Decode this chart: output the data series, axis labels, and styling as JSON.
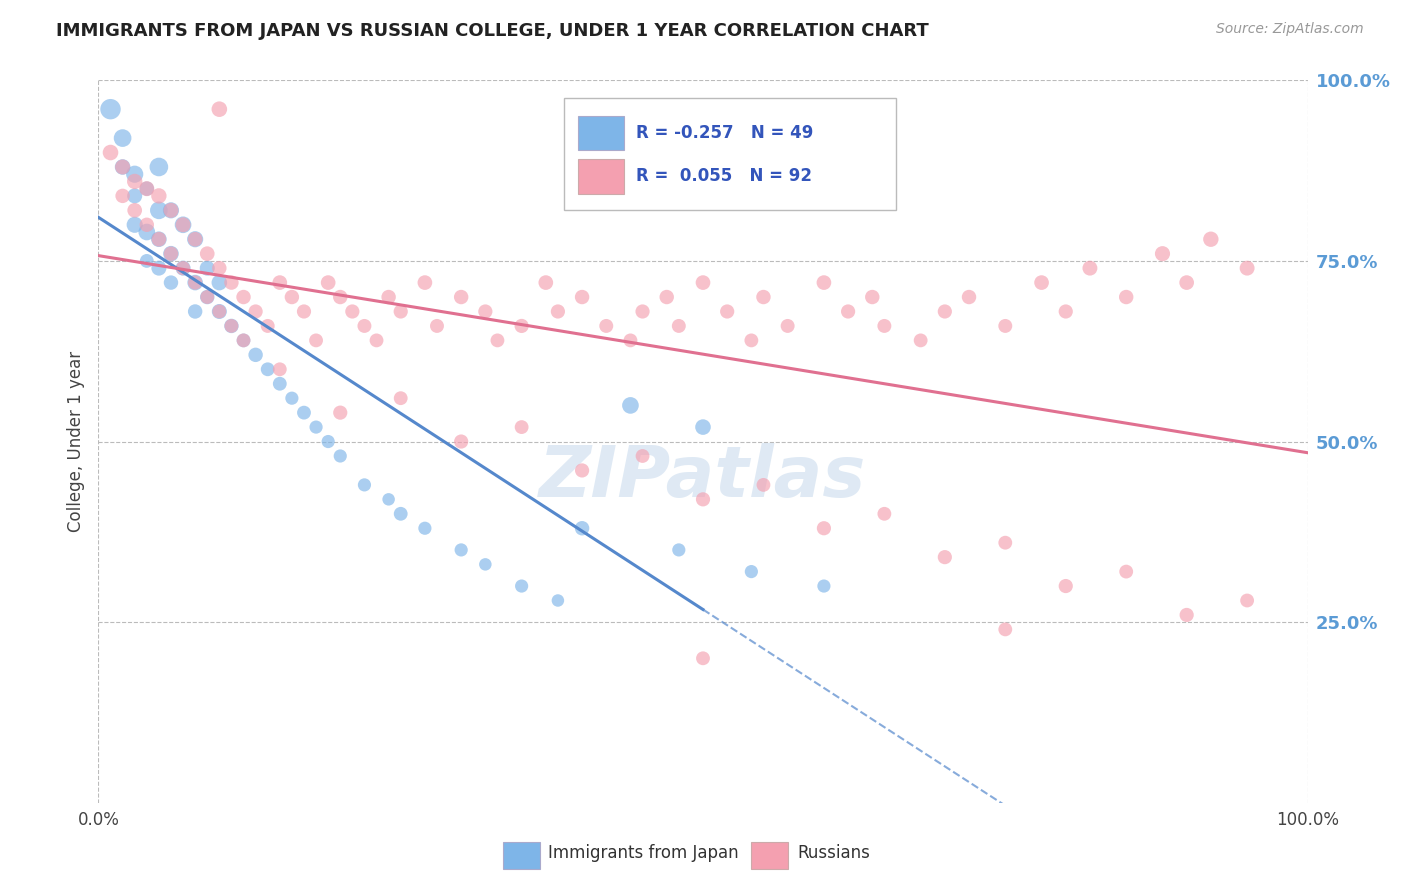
{
  "title": "IMMIGRANTS FROM JAPAN VS RUSSIAN COLLEGE, UNDER 1 YEAR CORRELATION CHART",
  "source": "Source: ZipAtlas.com",
  "ylabel": "College, Under 1 year",
  "xlim": [
    0.0,
    1.0
  ],
  "ylim": [
    0.0,
    1.0
  ],
  "ytick_positions": [
    0.25,
    0.5,
    0.75,
    1.0
  ],
  "color_japan": "#7EB5E8",
  "color_russia": "#F4A0B0",
  "color_japan_line": "#5588CC",
  "color_russia_line": "#E07090",
  "watermark": "ZIPatlas",
  "background_color": "#FFFFFF",
  "grid_color": "#BBBBBB",
  "japan_x": [
    0.01,
    0.02,
    0.02,
    0.03,
    0.03,
    0.03,
    0.04,
    0.04,
    0.04,
    0.05,
    0.05,
    0.05,
    0.05,
    0.06,
    0.06,
    0.06,
    0.07,
    0.07,
    0.08,
    0.08,
    0.08,
    0.09,
    0.09,
    0.1,
    0.1,
    0.11,
    0.12,
    0.13,
    0.14,
    0.15,
    0.16,
    0.17,
    0.18,
    0.19,
    0.2,
    0.22,
    0.24,
    0.25,
    0.27,
    0.3,
    0.32,
    0.35,
    0.38,
    0.4,
    0.44,
    0.48,
    0.5,
    0.54,
    0.6
  ],
  "japan_y": [
    0.96,
    0.92,
    0.88,
    0.87,
    0.84,
    0.8,
    0.85,
    0.79,
    0.75,
    0.82,
    0.78,
    0.74,
    0.88,
    0.82,
    0.76,
    0.72,
    0.8,
    0.74,
    0.78,
    0.72,
    0.68,
    0.74,
    0.7,
    0.72,
    0.68,
    0.66,
    0.64,
    0.62,
    0.6,
    0.58,
    0.56,
    0.54,
    0.52,
    0.5,
    0.48,
    0.44,
    0.42,
    0.4,
    0.38,
    0.35,
    0.33,
    0.3,
    0.28,
    0.38,
    0.55,
    0.35,
    0.52,
    0.32,
    0.3
  ],
  "japan_size": [
    120,
    90,
    70,
    85,
    65,
    75,
    60,
    80,
    55,
    90,
    70,
    65,
    100,
    75,
    70,
    60,
    80,
    65,
    75,
    70,
    60,
    65,
    60,
    70,
    65,
    60,
    55,
    60,
    55,
    55,
    50,
    55,
    50,
    50,
    50,
    50,
    45,
    55,
    50,
    50,
    45,
    50,
    45,
    60,
    80,
    50,
    70,
    50,
    50
  ],
  "russia_x": [
    0.01,
    0.02,
    0.02,
    0.03,
    0.03,
    0.04,
    0.04,
    0.05,
    0.05,
    0.06,
    0.06,
    0.07,
    0.07,
    0.08,
    0.08,
    0.09,
    0.09,
    0.1,
    0.1,
    0.11,
    0.11,
    0.12,
    0.12,
    0.13,
    0.14,
    0.15,
    0.16,
    0.17,
    0.18,
    0.19,
    0.2,
    0.21,
    0.22,
    0.23,
    0.24,
    0.25,
    0.27,
    0.28,
    0.3,
    0.32,
    0.33,
    0.35,
    0.37,
    0.38,
    0.4,
    0.42,
    0.44,
    0.45,
    0.47,
    0.48,
    0.5,
    0.52,
    0.54,
    0.55,
    0.57,
    0.6,
    0.62,
    0.64,
    0.65,
    0.68,
    0.7,
    0.72,
    0.75,
    0.78,
    0.8,
    0.82,
    0.85,
    0.88,
    0.9,
    0.92,
    0.95,
    0.15,
    0.25,
    0.35,
    0.45,
    0.55,
    0.65,
    0.75,
    0.85,
    0.95,
    0.2,
    0.3,
    0.4,
    0.5,
    0.6,
    0.7,
    0.8,
    0.9,
    0.1,
    0.5,
    0.75
  ],
  "russia_y": [
    0.9,
    0.88,
    0.84,
    0.86,
    0.82,
    0.85,
    0.8,
    0.84,
    0.78,
    0.82,
    0.76,
    0.8,
    0.74,
    0.78,
    0.72,
    0.76,
    0.7,
    0.74,
    0.68,
    0.72,
    0.66,
    0.7,
    0.64,
    0.68,
    0.66,
    0.72,
    0.7,
    0.68,
    0.64,
    0.72,
    0.7,
    0.68,
    0.66,
    0.64,
    0.7,
    0.68,
    0.72,
    0.66,
    0.7,
    0.68,
    0.64,
    0.66,
    0.72,
    0.68,
    0.7,
    0.66,
    0.64,
    0.68,
    0.7,
    0.66,
    0.72,
    0.68,
    0.64,
    0.7,
    0.66,
    0.72,
    0.68,
    0.7,
    0.66,
    0.64,
    0.68,
    0.7,
    0.66,
    0.72,
    0.68,
    0.74,
    0.7,
    0.76,
    0.72,
    0.78,
    0.74,
    0.6,
    0.56,
    0.52,
    0.48,
    0.44,
    0.4,
    0.36,
    0.32,
    0.28,
    0.54,
    0.5,
    0.46,
    0.42,
    0.38,
    0.34,
    0.3,
    0.26,
    0.96,
    0.2,
    0.24
  ],
  "russia_size": [
    70,
    65,
    60,
    68,
    62,
    65,
    60,
    68,
    62,
    65,
    60,
    65,
    58,
    62,
    58,
    62,
    55,
    60,
    55,
    60,
    55,
    60,
    55,
    58,
    56,
    62,
    60,
    58,
    55,
    62,
    60,
    58,
    56,
    55,
    60,
    58,
    62,
    56,
    60,
    58,
    55,
    58,
    62,
    58,
    60,
    56,
    55,
    58,
    60,
    56,
    62,
    58,
    55,
    60,
    56,
    62,
    58,
    60,
    56,
    55,
    58,
    60,
    56,
    62,
    58,
    64,
    60,
    66,
    62,
    68,
    64,
    55,
    55,
    55,
    55,
    55,
    55,
    55,
    55,
    55,
    58,
    58,
    58,
    58,
    58,
    58,
    58,
    58,
    70,
    55,
    55
  ]
}
